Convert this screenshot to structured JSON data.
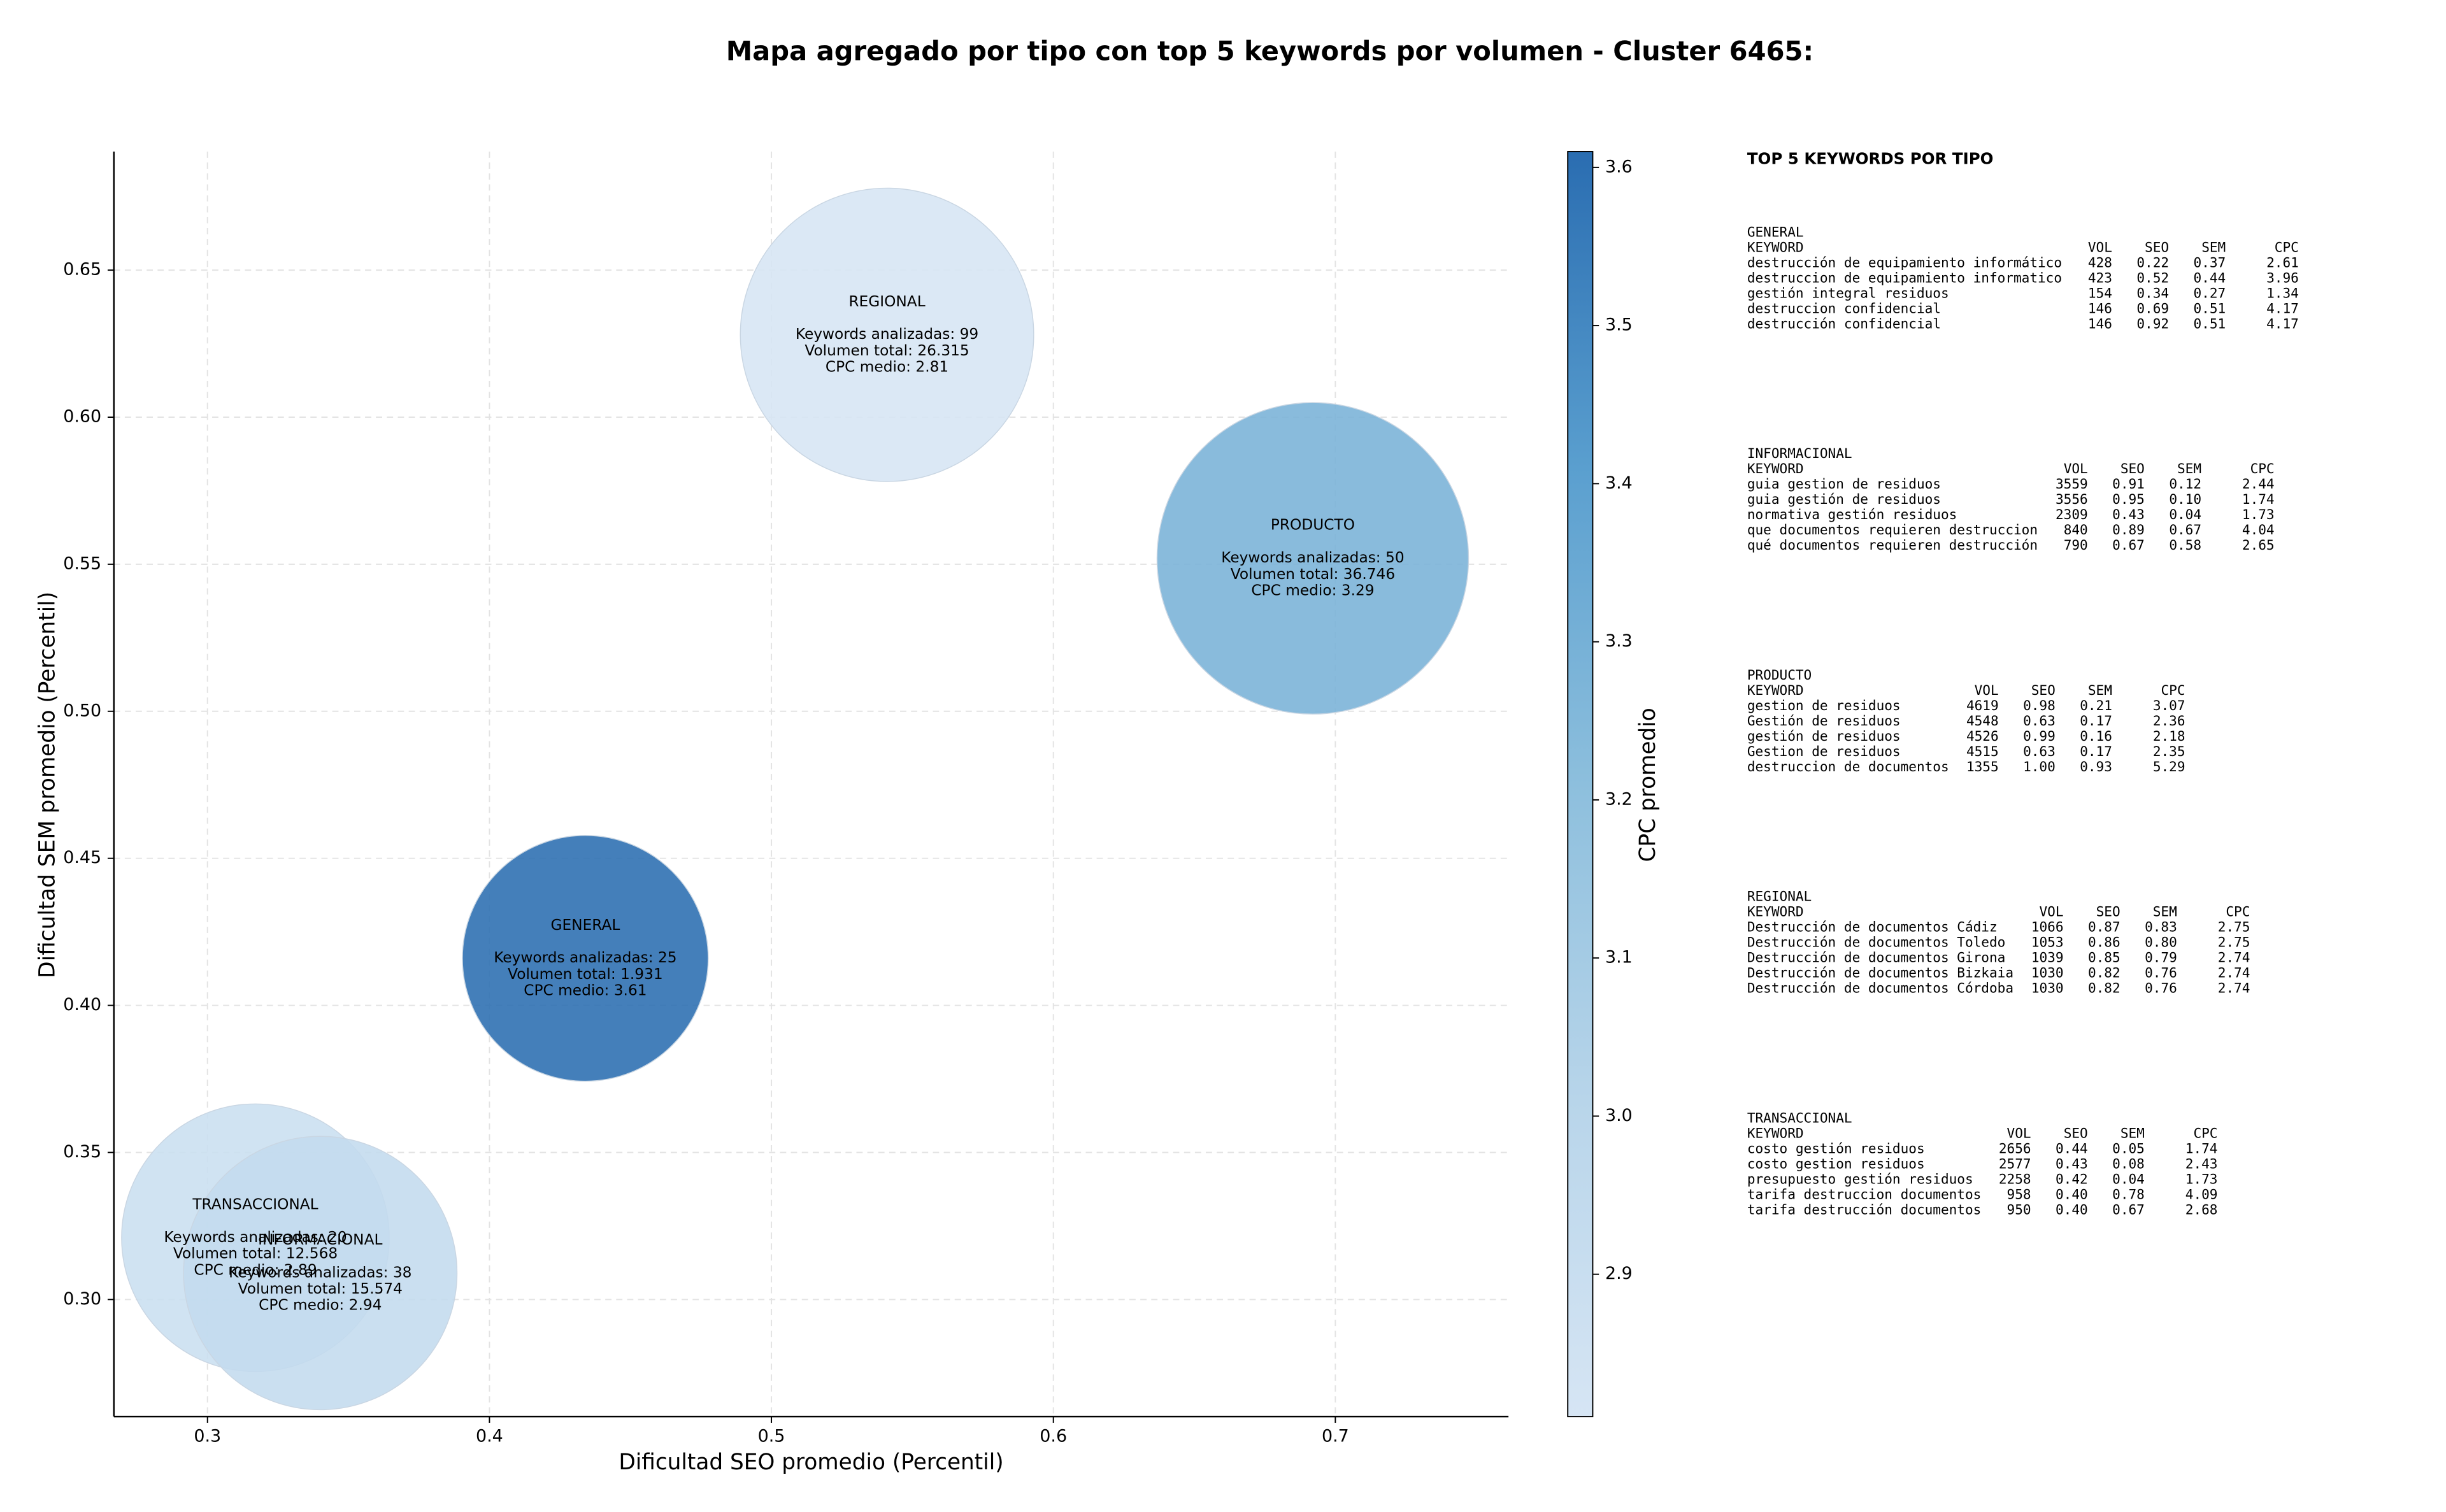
{
  "chart_data": {
    "type": "bubble",
    "title": "Mapa agregado por tipo con top 5 keywords por volumen - Cluster 6465:",
    "x_label": "Dificultad SEO promedio (Percentil)",
    "y_label": "Dificultad SEM promedio (Percentil)",
    "colorbar_label": "CPC promedio",
    "xlim": [
      0.2668,
      0.7614
    ],
    "ylim": [
      0.2602,
      0.6903
    ],
    "xticks": [
      0.3,
      0.4,
      0.5,
      0.6,
      0.7
    ],
    "yticks": [
      {
        "value": 0.3,
        "label": "0.30"
      },
      0.35,
      {
        "value": 0.4,
        "label": "0.40"
      },
      0.45,
      {
        "value": 0.5,
        "label": "0.50"
      },
      0.55,
      {
        "value": 0.6,
        "label": "0.60"
      },
      0.65
    ],
    "clim": [
      2.81,
      3.61
    ],
    "cticks": [
      2.9,
      {
        "value": 3.0,
        "label": "3.0"
      },
      3.1,
      3.2,
      3.3,
      3.4,
      3.5,
      3.6
    ],
    "colormap": [
      "#d6e5f4",
      "#b8d5ea",
      "#8dbfdd",
      "#5a9fcf",
      "#2a6db1"
    ],
    "grid": true,
    "series": [
      {
        "name": "TRANSACCIONAL",
        "x": 0.317,
        "y": 0.321,
        "size": 12568,
        "cpc": 2.89,
        "annotation": [
          "Keywords analizadas: 20",
          "Volumen total: 12.568",
          "CPC medio: 2.89"
        ]
      },
      {
        "name": "INFORMACIONAL",
        "x": 0.34,
        "y": 0.309,
        "size": 15574,
        "cpc": 2.94,
        "annotation": [
          "Keywords analizadas: 38",
          "Volumen total: 15.574",
          "CPC medio: 2.94"
        ]
      },
      {
        "name": "GENERAL",
        "x": 0.434,
        "y": 0.416,
        "size": 1931,
        "cpc": 3.61,
        "annotation": [
          "Keywords analizadas: 25",
          "Volumen total: 1.931",
          "CPC medio: 3.61"
        ]
      },
      {
        "name": "PRODUCTO",
        "x": 0.692,
        "y": 0.552,
        "size": 36746,
        "cpc": 3.29,
        "annotation": [
          "Keywords analizadas: 50",
          "Volumen total: 36.746",
          "CPC medio: 3.29"
        ]
      },
      {
        "name": "REGIONAL",
        "x": 0.541,
        "y": 0.628,
        "size": 26315,
        "cpc": 2.81,
        "annotation": [
          "Keywords analizadas: 99",
          "Volumen total: 26.315",
          "CPC medio: 2.81"
        ]
      }
    ]
  },
  "top_keywords": {
    "title": "TOP 5 KEYWORDS POR TIPO",
    "groups": [
      {
        "name": "GENERAL",
        "header": [
          "KEYWORD",
          "VOL",
          "SEO",
          "SEM",
          "CPC"
        ],
        "rows": [
          [
            "destrucción de equipamiento informático",
            "428",
            "0.22",
            "0.37",
            "2.61"
          ],
          [
            "destruccion de equipamiento informatico",
            "423",
            "0.52",
            "0.44",
            "3.96"
          ],
          [
            "gestión integral residuos",
            "154",
            "0.34",
            "0.27",
            "1.34"
          ],
          [
            "destruccion confidencial",
            "146",
            "0.69",
            "0.51",
            "4.17"
          ],
          [
            "destrucción confidencial",
            "146",
            "0.92",
            "0.51",
            "4.17"
          ]
        ]
      },
      {
        "name": "INFORMACIONAL",
        "header": [
          "KEYWORD",
          "VOL",
          "SEO",
          "SEM",
          "CPC"
        ],
        "rows": [
          [
            "guia gestion de residuos",
            "3559",
            "0.91",
            "0.12",
            "2.44"
          ],
          [
            "guia gestión de residuos",
            "3556",
            "0.95",
            "0.10",
            "1.74"
          ],
          [
            "normativa gestión residuos",
            "2309",
            "0.43",
            "0.04",
            "1.73"
          ],
          [
            "que documentos requieren destruccion",
            "840",
            "0.89",
            "0.67",
            "4.04"
          ],
          [
            "qué documentos requieren destrucción",
            "790",
            "0.67",
            "0.58",
            "2.65"
          ]
        ]
      },
      {
        "name": "PRODUCTO",
        "header": [
          "KEYWORD",
          "VOL",
          "SEO",
          "SEM",
          "CPC"
        ],
        "rows": [
          [
            "gestion de residuos",
            "4619",
            "0.98",
            "0.21",
            "3.07"
          ],
          [
            "Gestión de residuos",
            "4548",
            "0.63",
            "0.17",
            "2.36"
          ],
          [
            "gestión de residuos",
            "4526",
            "0.99",
            "0.16",
            "2.18"
          ],
          [
            "Gestion de residuos",
            "4515",
            "0.63",
            "0.17",
            "2.35"
          ],
          [
            "destruccion de documentos",
            "1355",
            "1.00",
            "0.93",
            "5.29"
          ]
        ]
      },
      {
        "name": "REGIONAL",
        "header": [
          "KEYWORD",
          "VOL",
          "SEO",
          "SEM",
          "CPC"
        ],
        "rows": [
          [
            "Destrucción de documentos Cádiz",
            "1066",
            "0.87",
            "0.83",
            "2.75"
          ],
          [
            "Destrucción de documentos Toledo",
            "1053",
            "0.86",
            "0.80",
            "2.75"
          ],
          [
            "Destrucción de documentos Girona",
            "1039",
            "0.85",
            "0.79",
            "2.74"
          ],
          [
            "Destrucción de documentos Bizkaia",
            "1030",
            "0.82",
            "0.76",
            "2.74"
          ],
          [
            "Destrucción de documentos Córdoba",
            "1030",
            "0.82",
            "0.76",
            "2.74"
          ]
        ]
      },
      {
        "name": "TRANSACCIONAL",
        "header": [
          "KEYWORD",
          "VOL",
          "SEO",
          "SEM",
          "CPC"
        ],
        "rows": [
          [
            "costo gestión residuos",
            "2656",
            "0.44",
            "0.05",
            "1.74"
          ],
          [
            "costo gestion residuos",
            "2577",
            "0.43",
            "0.08",
            "2.43"
          ],
          [
            "presupuesto gestión residuos",
            "2258",
            "0.42",
            "0.04",
            "1.73"
          ],
          [
            "tarifa destruccion documentos",
            "958",
            "0.40",
            "0.78",
            "4.09"
          ],
          [
            "tarifa destrucción documentos",
            "950",
            "0.40",
            "0.67",
            "2.68"
          ]
        ]
      }
    ]
  }
}
